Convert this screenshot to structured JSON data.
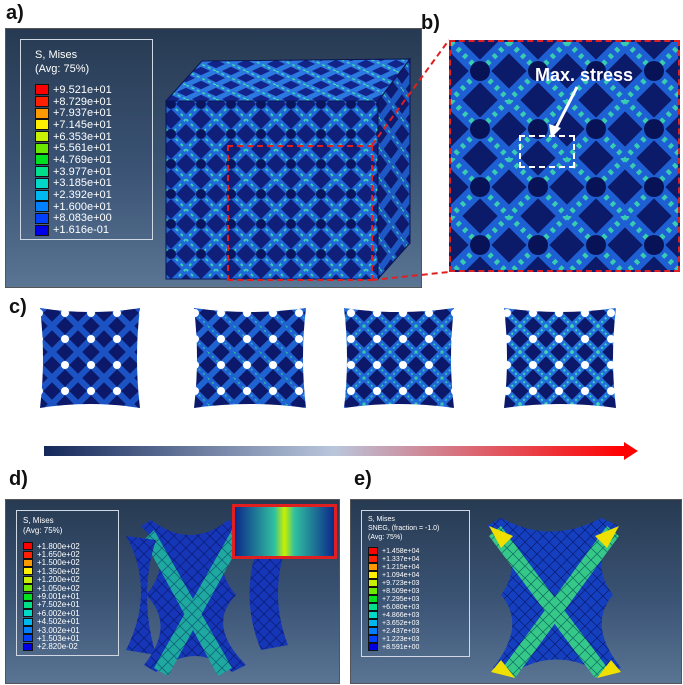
{
  "panels": {
    "a": {
      "letter": "a)"
    },
    "b": {
      "letter": "b)",
      "annotation": "Max. stress"
    },
    "c": {
      "letter": "c)"
    },
    "d": {
      "letter": "d)"
    },
    "e": {
      "letter": "e)"
    }
  },
  "legend_a": {
    "title1": "S, Mises",
    "title2": "(Avg: 75%)",
    "entries": [
      {
        "label": "+9.521e+01",
        "color": "#ff0000"
      },
      {
        "label": "+8.729e+01",
        "color": "#ff2000"
      },
      {
        "label": "+7.937e+01",
        "color": "#ff9900"
      },
      {
        "label": "+7.145e+01",
        "color": "#ffee00"
      },
      {
        "label": "+6.353e+01",
        "color": "#c8f000"
      },
      {
        "label": "+5.561e+01",
        "color": "#6ae800"
      },
      {
        "label": "+4.769e+01",
        "color": "#00e020"
      },
      {
        "label": "+3.977e+01",
        "color": "#00e08a"
      },
      {
        "label": "+3.185e+01",
        "color": "#00d8c8"
      },
      {
        "label": "+2.392e+01",
        "color": "#00b8f0"
      },
      {
        "label": "+1.600e+01",
        "color": "#0080ff"
      },
      {
        "label": "+8.083e+00",
        "color": "#0040ff"
      },
      {
        "label": "+1.616e-01",
        "color": "#0000e6"
      }
    ]
  },
  "legend_d": {
    "title1": "S, Mises",
    "title2": "(Avg: 75%)",
    "entries": [
      {
        "label": "+1.800e+02",
        "color": "#ff0000"
      },
      {
        "label": "+1.650e+02",
        "color": "#ff2000"
      },
      {
        "label": "+1.500e+02",
        "color": "#ff9900"
      },
      {
        "label": "+1.350e+02",
        "color": "#ffee00"
      },
      {
        "label": "+1.200e+02",
        "color": "#c8f000"
      },
      {
        "label": "+1.050e+02",
        "color": "#6ae800"
      },
      {
        "label": "+9.001e+01",
        "color": "#00e020"
      },
      {
        "label": "+7.502e+01",
        "color": "#00e08a"
      },
      {
        "label": "+6.002e+01",
        "color": "#00d8c8"
      },
      {
        "label": "+4.502e+01",
        "color": "#00b8f0"
      },
      {
        "label": "+3.002e+01",
        "color": "#0080ff"
      },
      {
        "label": "+1.503e+01",
        "color": "#0040ff"
      },
      {
        "label": "+2.820e-02",
        "color": "#0000e6"
      }
    ]
  },
  "legend_e": {
    "title1": "S, Mises",
    "title2": "SNEG, (fraction = -1.0)",
    "title3": "(Avg: 75%)",
    "entries": [
      {
        "label": "+1.458e+04",
        "color": "#ff0000"
      },
      {
        "label": "+1.337e+04",
        "color": "#ff2000"
      },
      {
        "label": "+1.215e+04",
        "color": "#ff9900"
      },
      {
        "label": "+1.094e+04",
        "color": "#ffee00"
      },
      {
        "label": "+9.723e+03",
        "color": "#c8f000"
      },
      {
        "label": "+8.509e+03",
        "color": "#6ae800"
      },
      {
        "label": "+7.295e+03",
        "color": "#00e020"
      },
      {
        "label": "+6.080e+03",
        "color": "#00e08a"
      },
      {
        "label": "+4.866e+03",
        "color": "#00d8c8"
      },
      {
        "label": "+3.652e+03",
        "color": "#00b8f0"
      },
      {
        "label": "+2.437e+03",
        "color": "#0080ff"
      },
      {
        "label": "+1.223e+03",
        "color": "#0040ff"
      },
      {
        "label": "+8.591e+00",
        "color": "#0000e6"
      }
    ]
  },
  "colors": {
    "highlight_box": "#e02020",
    "lattice_dark": "#10208a",
    "lattice_mid": "#1f63d6",
    "lattice_high": "#2fd7a8",
    "arrow_start": "#14285a",
    "arrow_end": "#ff0000"
  }
}
